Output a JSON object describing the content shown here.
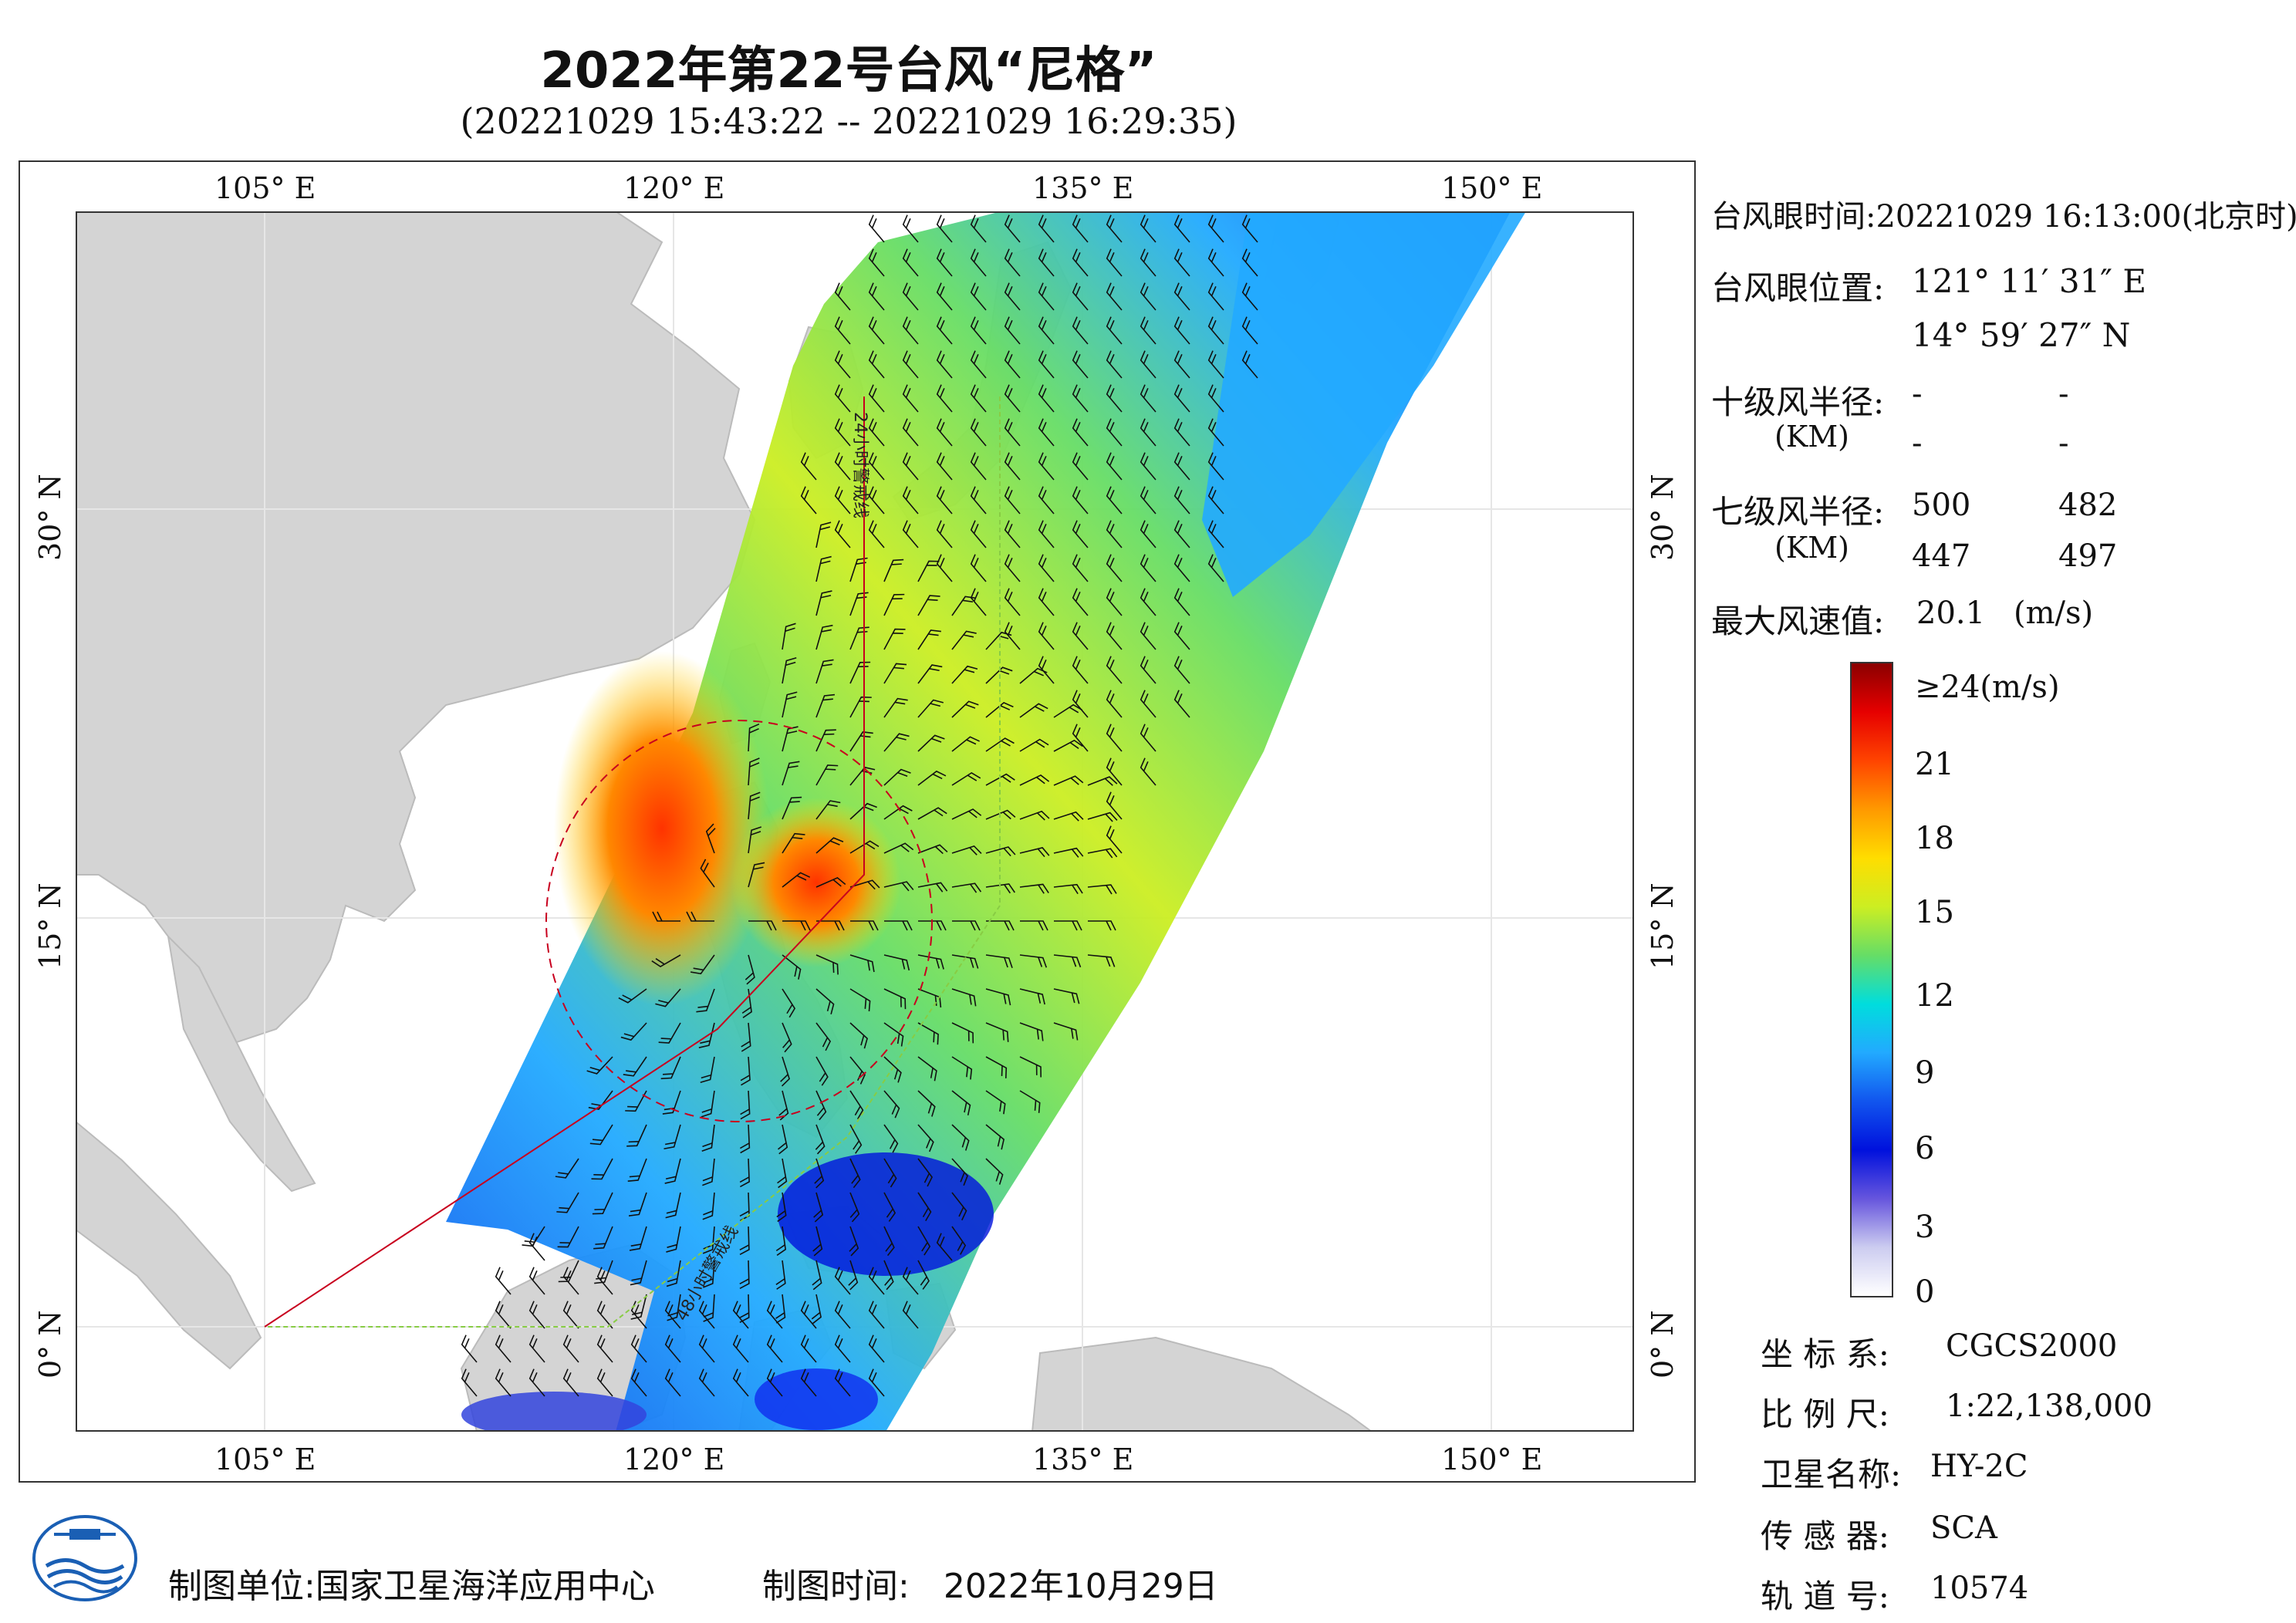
{
  "title": "2022年第22号台风“尼格”",
  "subtitle": "(20221029 15:43:22 -- 20221029 16:29:35)",
  "map": {
    "lon_ticks": [
      "105° E",
      "120° E",
      "135° E",
      "150° E"
    ],
    "lat_ticks": [
      "30° N",
      "15° N",
      "0° N"
    ],
    "track_label_24h": "24小时警戒线",
    "track_label_48h": "48小时警戒线",
    "colors": {
      "land": "#d4d4d4",
      "sea": "#ffffff",
      "warning_24h": "#c8001e",
      "warning_48h": "#88cc44"
    }
  },
  "info": {
    "eye_time_label": "台风眼时间:",
    "eye_time_value": "20221029 16:13:00(北京时)",
    "eye_pos_label": "台风眼位置:",
    "eye_lon": "121° 11′ 31″ E",
    "eye_lat": "14° 59′ 27″ N",
    "r10_label": "十级风半径:",
    "r10_unit": "(KM)",
    "r10_values": [
      "-",
      "-",
      "-",
      "-"
    ],
    "r7_label": "七级风半径:",
    "r7_unit": "(KM)",
    "r7_values": [
      "500",
      "482",
      "447",
      "497"
    ],
    "max_wind_label": "最大风速值:",
    "max_wind_value": "20.1",
    "max_wind_unit": "(m/s)"
  },
  "colorbar": {
    "labels": [
      "≥24(m/s)",
      "21",
      "18",
      "15",
      "12",
      "9",
      "6",
      "3",
      "0"
    ],
    "stops": [
      "#8b0000",
      "#e60000",
      "#ff4400",
      "#ff9900",
      "#ffdd00",
      "#ccee22",
      "#66dd66",
      "#00dddd",
      "#22aaff",
      "#1155ee",
      "#0011dd",
      "#6655dd",
      "#ccccf0",
      "#ffffff"
    ]
  },
  "meta": {
    "crs_label": "坐 标 系:",
    "crs_value": "CGCS2000",
    "scale_label": "比 例 尺:",
    "scale_value": "1:22,138,000",
    "sat_label": "卫星名称:",
    "sat_value": "HY-2C",
    "sensor_label": "传 感 器:",
    "sensor_value": "SCA",
    "orbit_label": "轨 道 号:",
    "orbit_value": "10574"
  },
  "footer": {
    "producer_label": "制图单位:",
    "producer_value": "国家卫星海洋应用中心",
    "date_label": "制图时间:",
    "date_value": "2022年10月29日"
  }
}
